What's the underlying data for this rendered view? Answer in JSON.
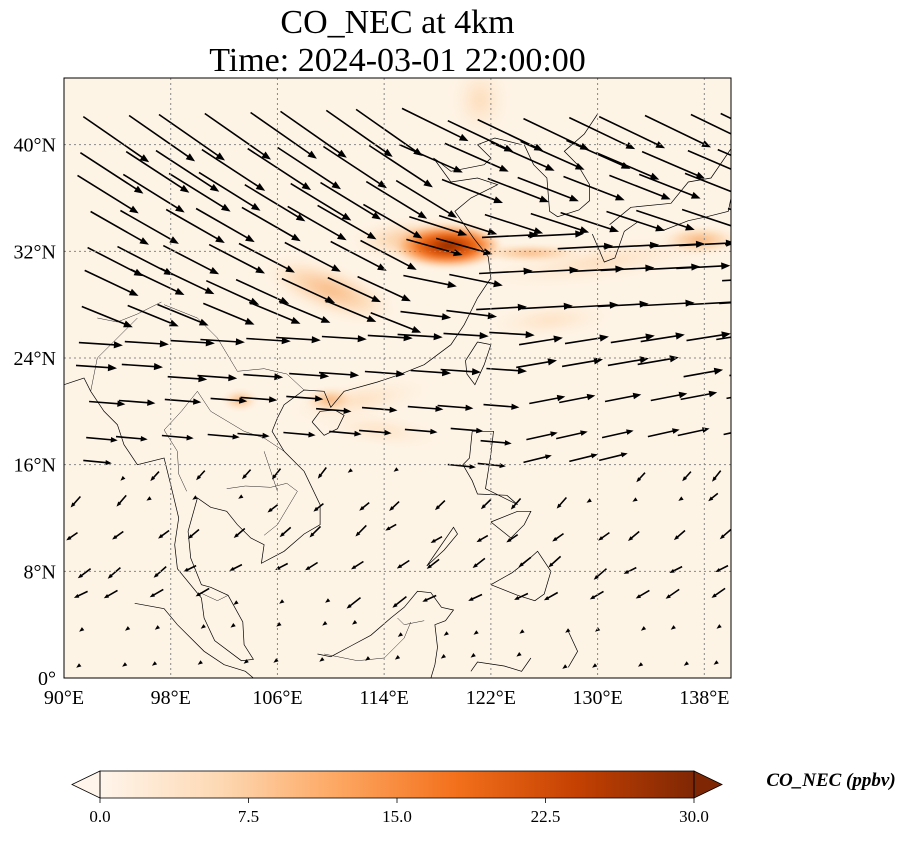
{
  "title": {
    "line1": "CO_NEC at 4km",
    "line2": "Time: 2024-03-01 22:00:00"
  },
  "map": {
    "lon_range": [
      90,
      140
    ],
    "lat_range": [
      0,
      45
    ],
    "lon_ticks": [
      "90°E",
      "98°E",
      "106°E",
      "114°E",
      "122°E",
      "130°E",
      "138°E"
    ],
    "lat_ticks": [
      "0°",
      "8°N",
      "16°N",
      "24°N",
      "32°N",
      "40°N"
    ],
    "gridlines": true,
    "features": [
      "coastlines",
      "country-borders",
      "wind-vectors",
      "CO concentration field"
    ],
    "plume_hotspot": {
      "lon": 119,
      "lat": 32.5,
      "peak_ppbv": 30
    }
  },
  "colorbar": {
    "label": "CO_NEC (ppbv)",
    "ticks": [
      "0.0",
      "7.5",
      "15.0",
      "22.5",
      "30.0"
    ],
    "min": 0,
    "max": 30,
    "colormap": [
      "#fff5eb",
      "#fdd9b4",
      "#fda762",
      "#f3701b",
      "#c54102",
      "#7f2704"
    ],
    "extend": "both"
  },
  "wind": {
    "description": "Arrows showing westerly to northwesterly flow in the north, weaker flow in the south"
  }
}
